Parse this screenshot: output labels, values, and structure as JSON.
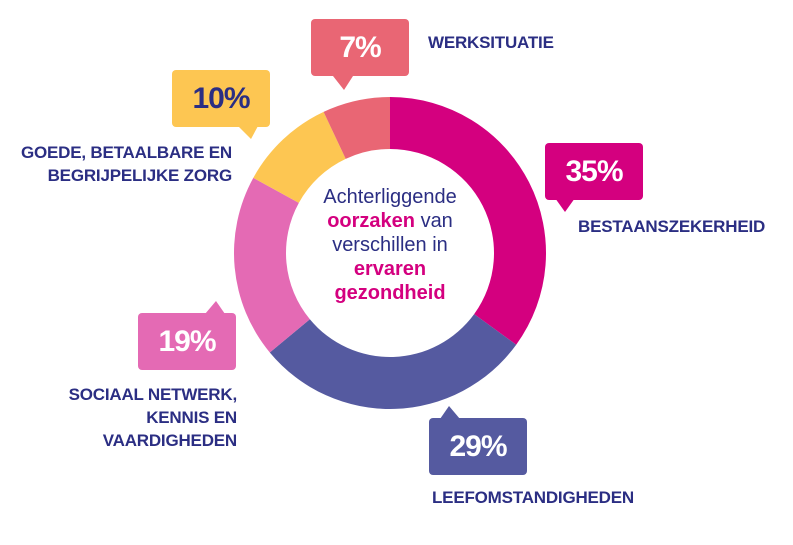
{
  "chart_data": {
    "type": "pie",
    "donut": true,
    "title_parts": [
      "Achterliggende",
      "oorzaken",
      "van",
      "verschillen in",
      "ervaren",
      "gezondheid"
    ],
    "slices": [
      {
        "label": "BESTAANSZEKERHEID",
        "value": 35,
        "value_label": "35%",
        "color": "#D4007F",
        "text_color": "#FFFFFF"
      },
      {
        "label": "LEEFOMSTANDIGHEDEN",
        "value": 29,
        "value_label": "29%",
        "color": "#555AA0",
        "text_color": "#FFFFFF"
      },
      {
        "label": "SOCIAAL NETWERK, KENNIS EN VAARDIGHEDEN",
        "lines": [
          "SOCIAAL NETWERK,",
          "KENNIS EN",
          "VAARDIGHEDEN"
        ],
        "value": 19,
        "value_label": "19%",
        "color": "#E46AB4",
        "text_color": "#FFFFFF"
      },
      {
        "label": "GOEDE, BETAALBARE EN BEGRIJPELIJKE ZORG",
        "lines": [
          "GOEDE, BETAALBARE EN",
          "BEGRIJPELIJKE ZORG"
        ],
        "value": 10,
        "value_label": "10%",
        "color": "#FDC652",
        "text_color": "#2B2E83"
      },
      {
        "label": "WERKSITUATIE",
        "value": 7,
        "value_label": "7%",
        "color": "#E96674",
        "text_color": "#FFFFFF"
      }
    ],
    "start": "top",
    "direction": "clockwise",
    "label_color": "#2B2E83"
  }
}
